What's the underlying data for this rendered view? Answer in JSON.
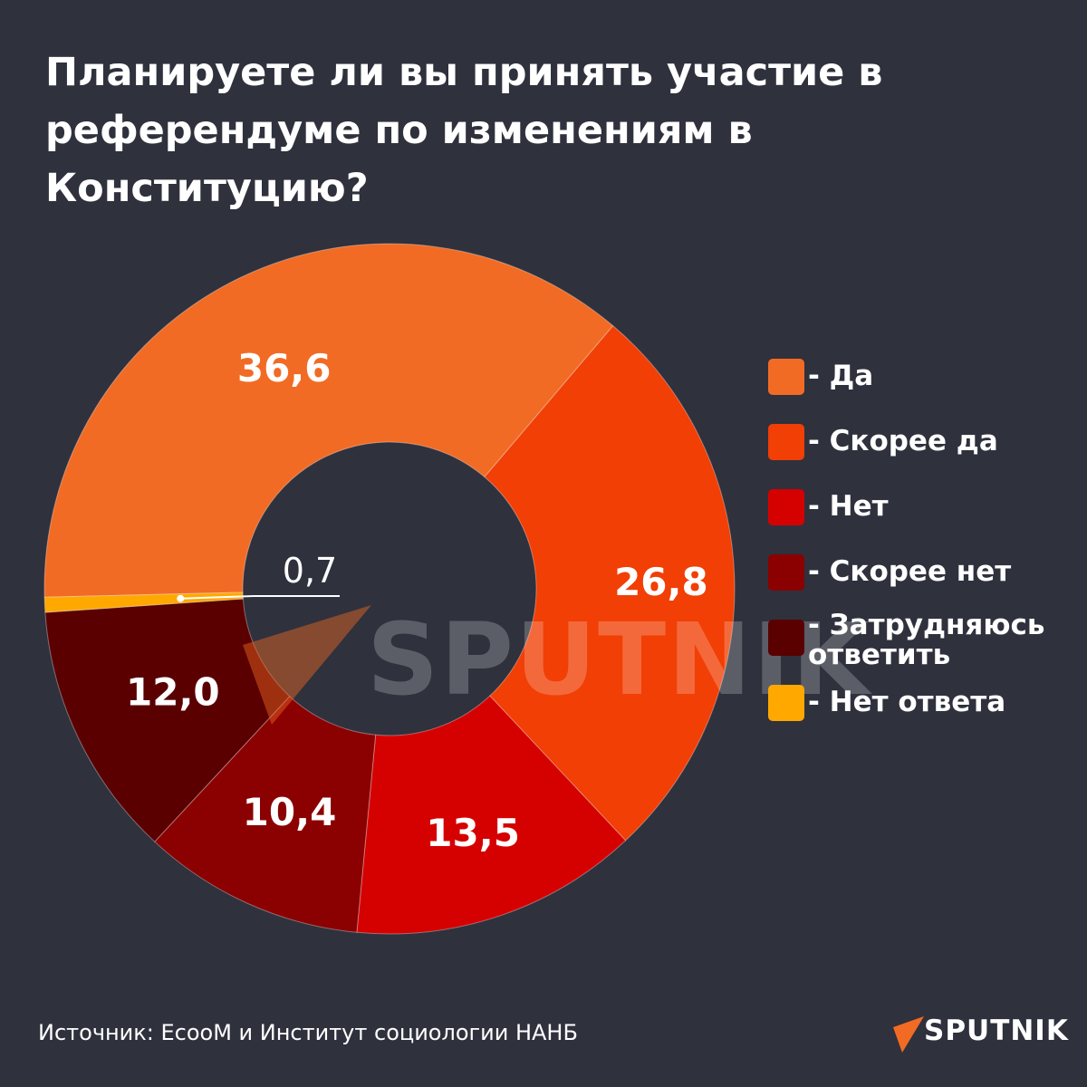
{
  "title": "Планируете ли вы принять участие в референдуме по изменениям в Конституцию?",
  "chart_data": {
    "type": "pie",
    "variant": "donut",
    "series": [
      {
        "name": "Да",
        "value": 36.6,
        "label": "36,6",
        "color": "#f26b24"
      },
      {
        "name": "Скорее да",
        "value": 26.8,
        "label": "26,8",
        "color": "#f13f05"
      },
      {
        "name": "Нет",
        "value": 13.5,
        "label": "13,5",
        "color": "#d50100"
      },
      {
        "name": "Скорее нет",
        "value": 10.4,
        "label": "10,4",
        "color": "#8b0000"
      },
      {
        "name": "Затрудняюсь ответить",
        "value": 12.0,
        "label": "12,0",
        "color": "#5a0000"
      },
      {
        "name": "Нет ответа",
        "value": 0.7,
        "label": "0,7",
        "color": "#ffa800"
      }
    ],
    "legend_placement": "right"
  },
  "legend": [
    {
      "label": "- Да",
      "color": "#f26b24"
    },
    {
      "label": "- Скорее да",
      "color": "#f13f05"
    },
    {
      "label": "- Нет",
      "color": "#d50100"
    },
    {
      "label": "- Скорее нет",
      "color": "#8b0000"
    },
    {
      "label": "- Затрудняюсь ответить",
      "color": "#5a0000"
    },
    {
      "label": "- Нет ответа",
      "color": "#ffa800"
    }
  ],
  "source": "Источник: EcooM и Институт социологии НАНБ",
  "brand": {
    "name": "SPUTNIK",
    "icon": "sputnik-arrow-icon",
    "accent": "#f26b24"
  },
  "watermark": {
    "text": "SPUTNIK"
  }
}
